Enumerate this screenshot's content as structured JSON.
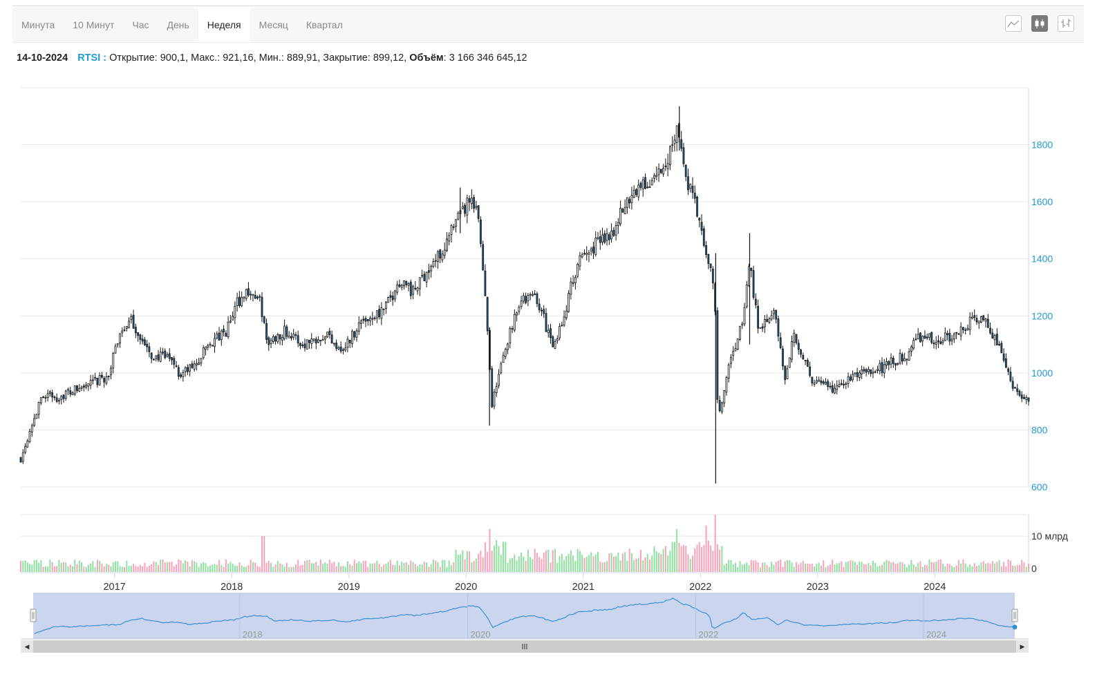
{
  "toolbar": {
    "periods": [
      "Минута",
      "10 Минут",
      "Час",
      "День",
      "Неделя",
      "Месяц",
      "Квартал"
    ],
    "active_period": "Неделя",
    "chart_types": [
      "line-chart-icon",
      "candlestick-chart-icon",
      "ohlc-bar-chart-icon"
    ],
    "active_chart_type": "candlestick-chart-icon"
  },
  "info": {
    "date": "14-10-2024",
    "ticker": "RTSI :",
    "details": "Открытие: 900,1, Макс.: 921,16, Мин.: 889,91, Закрытие: 899,12,",
    "volume_label": "Объём",
    "volume_value": ": 3 166 346 645,12"
  },
  "colors": {
    "accent": "#1f9ad6",
    "candle_down": "#1f5f8b",
    "candle_up": "#ffffff",
    "volume_up": "#90e0a0",
    "volume_down": "#f9a3ba",
    "navigator_fill": "#c9d6ee",
    "navigator_line": "#3a8ed0"
  },
  "chart_data": {
    "type": "candlestick",
    "title": "RTSI",
    "interval": "week",
    "x_start": 2016.2,
    "x_end": 2024.8,
    "xticks": [
      2017,
      2018,
      2019,
      2020,
      2021,
      2022,
      2023,
      2024
    ],
    "yticks": [
      600,
      800,
      1000,
      1200,
      1400,
      1600,
      1800
    ],
    "ylim": [
      600,
      2000
    ],
    "volume_ticks": [
      "0",
      "10 млрд"
    ],
    "volume_max": 16,
    "navigator_ticks": [
      "2018",
      "2020",
      "2022",
      "2024"
    ],
    "price_path": [
      [
        2016.2,
        700
      ],
      [
        2016.3,
        830
      ],
      [
        2016.4,
        930
      ],
      [
        2016.5,
        910
      ],
      [
        2016.6,
        930
      ],
      [
        2016.8,
        960
      ],
      [
        2016.95,
        990
      ],
      [
        2017.05,
        1150
      ],
      [
        2017.15,
        1180
      ],
      [
        2017.3,
        1060
      ],
      [
        2017.5,
        1050
      ],
      [
        2017.55,
        990
      ],
      [
        2017.7,
        1030
      ],
      [
        2017.8,
        1100
      ],
      [
        2017.95,
        1140
      ],
      [
        2018.05,
        1250
      ],
      [
        2018.15,
        1290
      ],
      [
        2018.25,
        1240
      ],
      [
        2018.3,
        1100
      ],
      [
        2018.45,
        1150
      ],
      [
        2018.6,
        1100
      ],
      [
        2018.8,
        1140
      ],
      [
        2018.95,
        1080
      ],
      [
        2019.1,
        1180
      ],
      [
        2019.3,
        1220
      ],
      [
        2019.45,
        1330
      ],
      [
        2019.55,
        1280
      ],
      [
        2019.65,
        1350
      ],
      [
        2019.75,
        1400
      ],
      [
        2019.9,
        1510
      ],
      [
        2020.02,
        1600
      ],
      [
        2020.1,
        1560
      ],
      [
        2020.17,
        1250
      ],
      [
        2020.22,
        890
      ],
      [
        2020.35,
        1110
      ],
      [
        2020.45,
        1250
      ],
      [
        2020.6,
        1270
      ],
      [
        2020.75,
        1080
      ],
      [
        2020.85,
        1230
      ],
      [
        2020.95,
        1380
      ],
      [
        2021.1,
        1450
      ],
      [
        2021.25,
        1500
      ],
      [
        2021.4,
        1620
      ],
      [
        2021.45,
        1650
      ],
      [
        2021.55,
        1660
      ],
      [
        2021.7,
        1720
      ],
      [
        2021.8,
        1880
      ],
      [
        2021.87,
        1690
      ],
      [
        2021.95,
        1600
      ],
      [
        2022.05,
        1410
      ],
      [
        2022.12,
        1300
      ],
      [
        2022.15,
        830
      ],
      [
        2022.25,
        1030
      ],
      [
        2022.35,
        1160
      ],
      [
        2022.42,
        1380
      ],
      [
        2022.5,
        1150
      ],
      [
        2022.62,
        1230
      ],
      [
        2022.72,
        990
      ],
      [
        2022.8,
        1140
      ],
      [
        2022.95,
        970
      ],
      [
        2023.15,
        940
      ],
      [
        2023.3,
        990
      ],
      [
        2023.5,
        1010
      ],
      [
        2023.6,
        1030
      ],
      [
        2023.75,
        1060
      ],
      [
        2023.9,
        1140
      ],
      [
        2024.0,
        1100
      ],
      [
        2024.2,
        1150
      ],
      [
        2024.4,
        1200
      ],
      [
        2024.5,
        1130
      ],
      [
        2024.6,
        1040
      ],
      [
        2024.7,
        920
      ],
      [
        2024.8,
        900
      ]
    ],
    "event_wicks": [
      {
        "x": 2020.2,
        "low": 815,
        "high": 1160
      },
      {
        "x": 2022.13,
        "low": 612,
        "high": 1420
      },
      {
        "x": 2022.42,
        "low": 1100,
        "high": 1490
      },
      {
        "x": 2021.82,
        "low": 1780,
        "high": 1935
      },
      {
        "x": 2019.95,
        "low": 1490,
        "high": 1650
      }
    ],
    "volume_spikes": [
      {
        "x": 2018.27,
        "value": 10
      },
      {
        "x": 2020.2,
        "value": 12
      },
      {
        "x": 2021.8,
        "value": 12
      },
      {
        "x": 2022.05,
        "value": 13
      },
      {
        "x": 2022.13,
        "value": 16
      }
    ]
  }
}
